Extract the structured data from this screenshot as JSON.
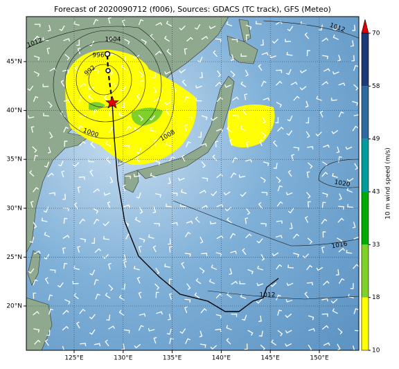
{
  "title": "Forecast of 2020090712 (f006), Sources: GDACS (TC track), GFS (Meteo)",
  "lon_ticks": [
    "125°E",
    "130°E",
    "135°E",
    "140°E",
    "145°E",
    "150°E"
  ],
  "lat_ticks": [
    "45°N",
    "40°N",
    "35°N",
    "30°N",
    "25°N",
    "20°N"
  ],
  "isobar_labels": [
    "1012",
    "1004",
    "996",
    "992",
    "1000",
    "1008",
    "1012",
    "1020",
    "1016",
    "1012"
  ],
  "colorbar": {
    "label": "10 m wind speed (m/s)",
    "ticks": [
      10,
      18,
      33,
      43,
      49,
      58,
      70
    ],
    "colors": [
      "#ffff00",
      "#80d02a",
      "#00ac00",
      "#009c9c",
      "#2c6aa0",
      "#1c3a78"
    ],
    "extend_color": "#dd0000"
  }
}
